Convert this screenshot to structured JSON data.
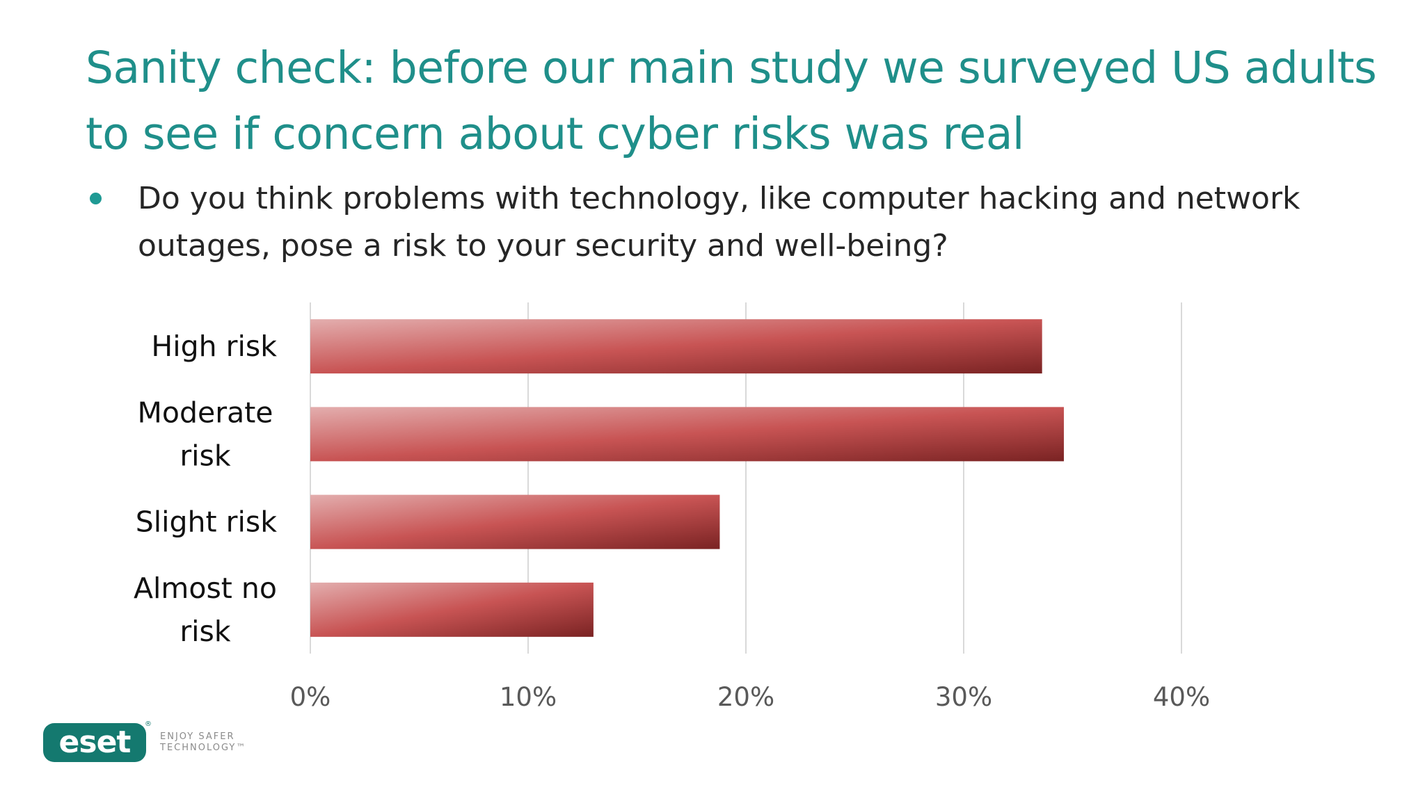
{
  "slide": {
    "title": "Sanity check: before our main study we surveyed US adults to see if concern about cyber risks was real",
    "bullet": "Do you think problems with technology, like computer hacking and network outages, pose a risk to your security and well-being?"
  },
  "logo": {
    "name": "eset",
    "tagline_line1": "ENJOY SAFER",
    "tagline_line2": "TECHNOLOGY™",
    "brand_color": "#14796f"
  },
  "colors": {
    "title": "#1f8f8a",
    "bar_light": "#e3aeae",
    "bar_mid": "#c85454",
    "bar_dark": "#7a2323"
  },
  "chart_data": {
    "type": "bar",
    "orientation": "horizontal",
    "categories": [
      "High risk",
      "Moderate risk",
      "Slight risk",
      "Almost no risk"
    ],
    "category_lines": [
      [
        "High risk"
      ],
      [
        "Moderate",
        "risk"
      ],
      [
        "Slight risk"
      ],
      [
        "Almost no",
        "risk"
      ]
    ],
    "values": [
      33.6,
      34.6,
      18.8,
      13.0
    ],
    "value_unit": "%",
    "xlim": [
      0,
      40
    ],
    "xticks": [
      "0%",
      "10%",
      "20%",
      "30%",
      "40%"
    ],
    "grid": true,
    "legend": "none"
  }
}
